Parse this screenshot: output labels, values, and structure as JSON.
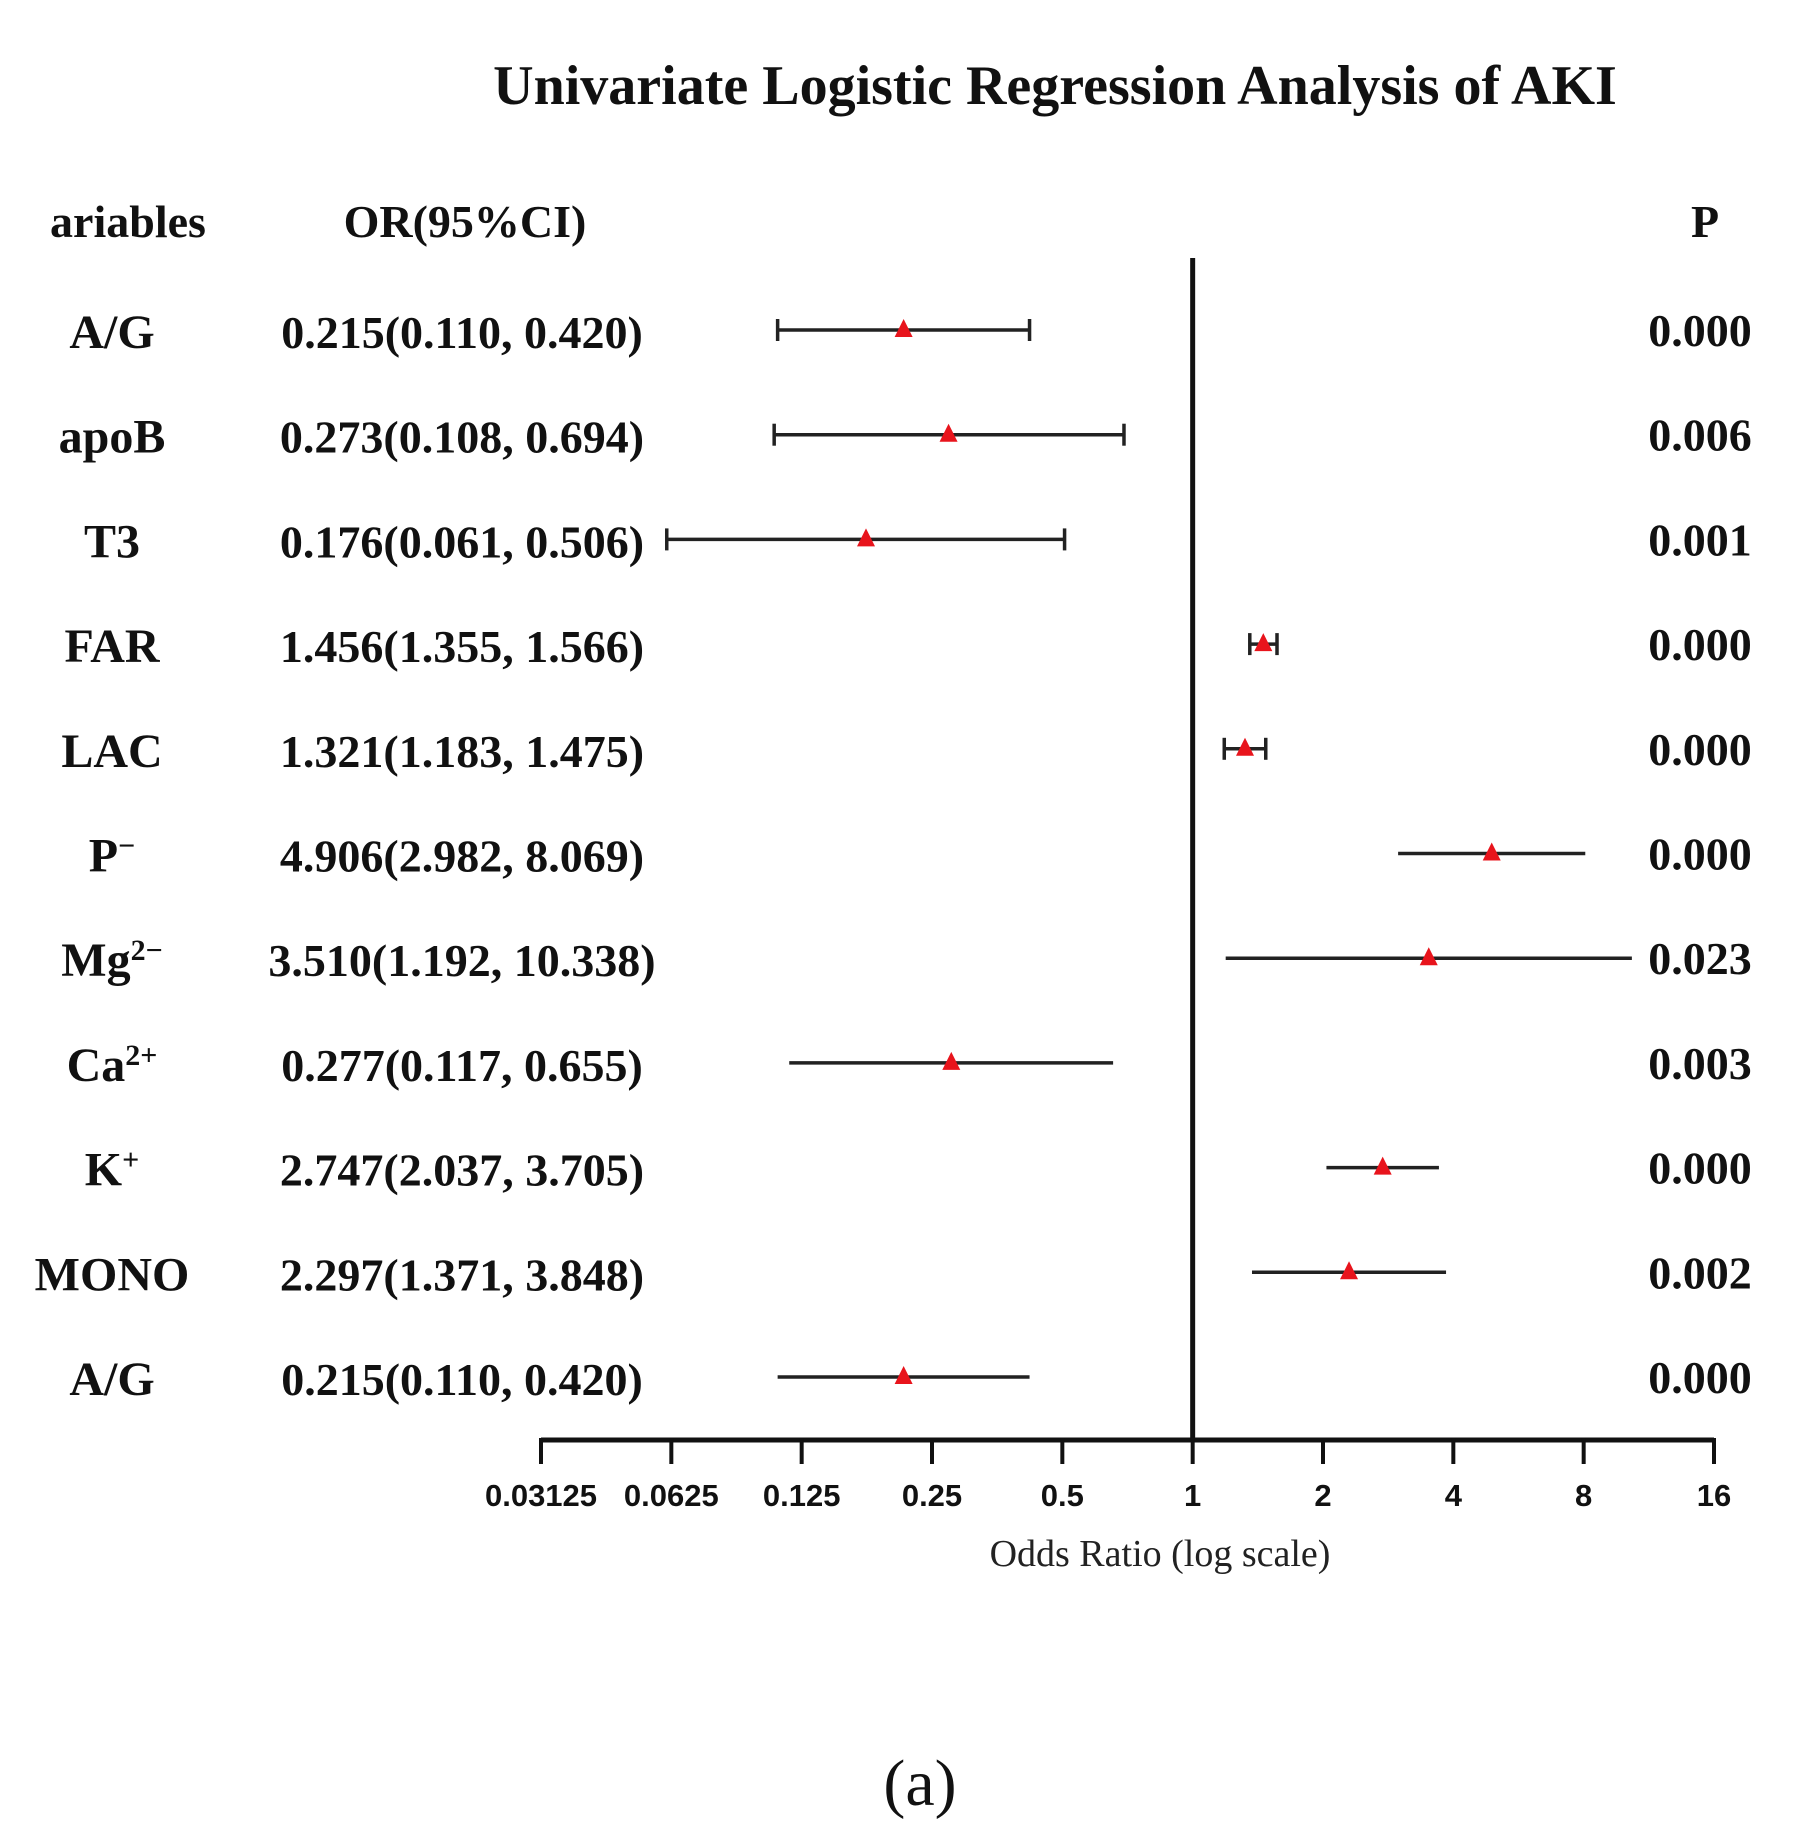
{
  "chart_data": {
    "type": "forest",
    "title": "Univariate Logistic Regression Analysis of AKI",
    "headers": {
      "variables": "ariables",
      "or_ci": "OR(95%CI)",
      "p": "P"
    },
    "xlabel": "Odds Ratio (log scale)",
    "x_scale": "log2",
    "xlim": [
      0.03125,
      16
    ],
    "reference_line": 1,
    "ticks": [
      {
        "value": 0.03125,
        "label": "0.03125"
      },
      {
        "value": 0.0625,
        "label": "0.0625"
      },
      {
        "value": 0.125,
        "label": "0.125"
      },
      {
        "value": 0.25,
        "label": "0.25"
      },
      {
        "value": 0.5,
        "label": "0.5"
      },
      {
        "value": 1,
        "label": "1"
      },
      {
        "value": 2,
        "label": "2"
      },
      {
        "value": 4,
        "label": "4"
      },
      {
        "value": 8,
        "label": "8"
      },
      {
        "value": 16,
        "label": "16"
      }
    ],
    "rows": [
      {
        "name": "A/G",
        "sup": "",
        "or": 0.215,
        "lower": 0.11,
        "upper": 0.42,
        "or_text": "0.215(0.110, 0.420)",
        "p": "0.000",
        "caps": true
      },
      {
        "name": "apoB",
        "sup": "",
        "or": 0.273,
        "lower": 0.108,
        "upper": 0.694,
        "or_text": "0.273(0.108, 0.694)",
        "p": "0.006",
        "caps": true
      },
      {
        "name": "T3",
        "sup": "",
        "or": 0.176,
        "lower": 0.061,
        "upper": 0.506,
        "or_text": "0.176(0.061, 0.506)",
        "p": "0.001",
        "caps": true
      },
      {
        "name": "FAR",
        "sup": "",
        "or": 1.456,
        "lower": 1.355,
        "upper": 1.566,
        "or_text": "1.456(1.355, 1.566)",
        "p": "0.000",
        "caps": true
      },
      {
        "name": "LAC",
        "sup": "",
        "or": 1.321,
        "lower": 1.183,
        "upper": 1.475,
        "or_text": "1.321(1.183, 1.475)",
        "p": "0.000",
        "caps": true
      },
      {
        "name": "P",
        "sup": "−",
        "or": 4.906,
        "lower": 2.982,
        "upper": 8.069,
        "or_text": "4.906(2.982, 8.069)",
        "p": "0.000",
        "caps": false
      },
      {
        "name": "Mg",
        "sup": "2−",
        "or": 3.51,
        "lower": 1.192,
        "upper": 10.338,
        "or_text": "3.510(1.192, 10.338)",
        "p": "0.023",
        "caps": false
      },
      {
        "name": "Ca",
        "sup": "2+",
        "or": 0.277,
        "lower": 0.117,
        "upper": 0.655,
        "or_text": "0.277(0.117, 0.655)",
        "p": "0.003",
        "caps": false
      },
      {
        "name": "K",
        "sup": "+",
        "or": 2.747,
        "lower": 2.037,
        "upper": 3.705,
        "or_text": "2.747(2.037, 3.705)",
        "p": "0.000",
        "caps": false
      },
      {
        "name": "MONO",
        "sup": "",
        "or": 2.297,
        "lower": 1.371,
        "upper": 3.848,
        "or_text": "2.297(1.371, 3.848)",
        "p": "0.002",
        "caps": false
      },
      {
        "name": "A/G",
        "sup": "",
        "or": 0.215,
        "lower": 0.11,
        "upper": 0.42,
        "or_text": "0.215(0.110, 0.420)",
        "p": "0.000",
        "caps": false
      }
    ],
    "marker_color": "#e8141c",
    "line_color": "#222222"
  },
  "caption": "(a)"
}
